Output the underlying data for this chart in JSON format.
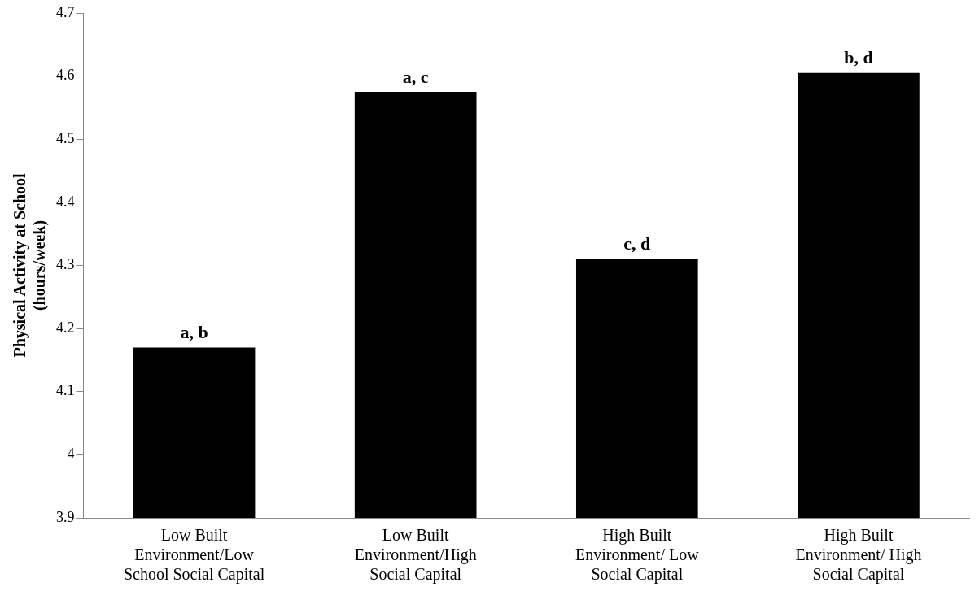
{
  "chart_data": {
    "type": "bar",
    "ylabel": "Physical Activity at School\n(hours/week)",
    "categories": [
      "Low Built\nEnvironment/Low\nSchool Social Capital",
      "Low Built\nEnvironment/High\nSocial Capital",
      "High Built\nEnvironment/ Low\nSocial Capital",
      "High Built\nEnvironment/ High\nSocial Capital"
    ],
    "values": [
      4.17,
      4.575,
      4.31,
      4.605
    ],
    "color": "#000000",
    "ylim": [
      3.9,
      4.7
    ],
    "yticks": [
      3.9,
      4,
      4.1,
      4.2,
      4.3,
      4.4,
      4.5,
      4.6,
      4.7
    ],
    "grid": false,
    "legend": false,
    "annotations": [
      {
        "text": "a, b",
        "x": "Low Built\nEnvironment/Low\nSchool Social Capital",
        "y": 4.17
      },
      {
        "text": "a, c",
        "x": "Low Built\nEnvironment/High\nSocial Capital",
        "y": 4.575
      },
      {
        "text": "c, d",
        "x": "High Built\nEnvironment/ Low\nSocial Capital",
        "y": 4.31
      },
      {
        "text": "b, d",
        "x": "High Built\nEnvironment/ High\nSocial Capital",
        "y": 4.605
      }
    ]
  }
}
